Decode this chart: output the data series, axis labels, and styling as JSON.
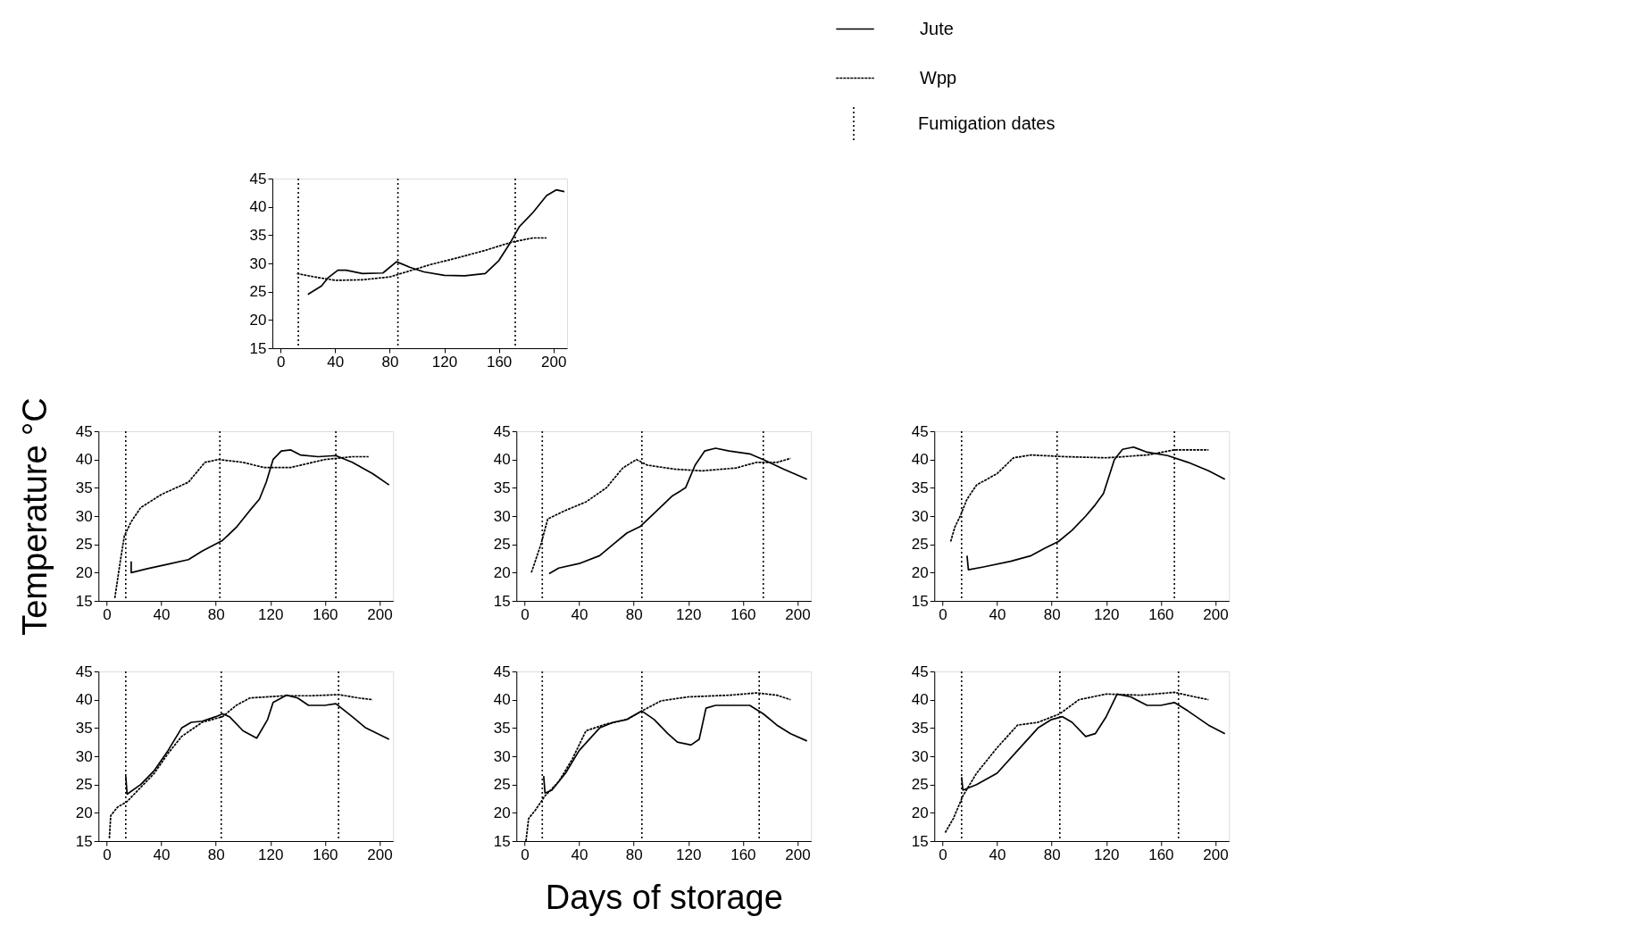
{
  "chart_data": [
    {
      "type": "line",
      "xlim": [
        -6,
        210
      ],
      "xticks": [
        0,
        40,
        80,
        120,
        160,
        200
      ],
      "ylim": [
        15,
        45
      ],
      "yticks": [
        15,
        20,
        25,
        30,
        35,
        40,
        45
      ],
      "grid": false,
      "legend": "top right",
      "series": [
        {
          "name": "Jute",
          "color": "#000000",
          "line_style": "solid",
          "x": [
            20,
            30,
            35,
            42,
            48,
            60,
            75,
            85,
            95,
            105,
            120,
            135,
            150,
            160,
            168,
            175,
            185,
            195,
            202,
            208
          ],
          "values": [
            24.5,
            26,
            27.5,
            28.8,
            28.8,
            28.2,
            28.3,
            30.3,
            29.3,
            28.5,
            27.9,
            27.8,
            28.2,
            30.5,
            33.5,
            36.5,
            39,
            42,
            43,
            42.7
          ]
        },
        {
          "name": "Wpp",
          "color": "#000000",
          "line_style": "dashed",
          "x": [
            12,
            25,
            40,
            60,
            80,
            95,
            110,
            130,
            150,
            170,
            185,
            195
          ],
          "values": [
            28.2,
            27.6,
            27,
            27.1,
            27.6,
            28.7,
            29.8,
            31,
            32.3,
            33.8,
            34.5,
            34.5
          ]
        }
      ],
      "annotations": [
        "Fumigation dates"
      ],
      "ref_lines": [
        {
          "axis": "x",
          "value": 13,
          "color": "#000000",
          "line_style": "dotted"
        },
        {
          "axis": "x",
          "value": 86,
          "color": "#000000",
          "line_style": "dotted"
        },
        {
          "axis": "x",
          "value": 172,
          "color": "#000000",
          "line_style": "dotted"
        }
      ]
    },
    {
      "type": "line",
      "ylabel": "Temperature °C",
      "xlim": [
        -6,
        210
      ],
      "xticks": [
        0,
        40,
        80,
        120,
        160,
        200
      ],
      "ylim": [
        15,
        45
      ],
      "yticks": [
        15,
        20,
        25,
        30,
        35,
        40,
        45
      ],
      "grid": false,
      "series": [
        {
          "color": "#000000",
          "line_style": "solid",
          "x": [
            18,
            18,
            30,
            45,
            60,
            70,
            85,
            95,
            105,
            112,
            117,
            122,
            128,
            135,
            142,
            155,
            168,
            180,
            195,
            207
          ],
          "values": [
            22,
            20,
            20.7,
            21.5,
            22.3,
            23.8,
            25.7,
            28,
            31,
            33,
            36,
            40,
            41.5,
            41.7,
            40.8,
            40.5,
            40.7,
            39.5,
            37.5,
            35.5
          ]
        },
        {
          "color": "#000000",
          "line_style": "dashed",
          "x": [
            6,
            10,
            13,
            18,
            25,
            40,
            60,
            72,
            82,
            100,
            115,
            135,
            160,
            180,
            192
          ],
          "values": [
            15.5,
            22,
            26.5,
            29,
            31.5,
            33.8,
            36,
            39.5,
            40,
            39.5,
            38.6,
            38.6,
            40,
            40.5,
            40.5
          ]
        }
      ],
      "ref_lines": [
        {
          "axis": "x",
          "value": 14,
          "color": "#000000",
          "line_style": "dotted"
        },
        {
          "axis": "x",
          "value": 83,
          "color": "#000000",
          "line_style": "dotted"
        },
        {
          "axis": "x",
          "value": 168,
          "color": "#000000",
          "line_style": "dotted"
        }
      ]
    },
    {
      "type": "line",
      "xlim": [
        -6,
        210
      ],
      "xticks": [
        0,
        40,
        80,
        120,
        160,
        200
      ],
      "ylim": [
        15,
        45
      ],
      "yticks": [
        15,
        20,
        25,
        30,
        35,
        40,
        45
      ],
      "grid": false,
      "series": [
        {
          "color": "#000000",
          "line_style": "solid",
          "x": [
            18,
            25,
            40,
            55,
            65,
            75,
            85,
            95,
            108,
            118,
            125,
            132,
            140,
            150,
            165,
            175,
            190,
            207
          ],
          "values": [
            19.8,
            20.8,
            21.6,
            23,
            25,
            27,
            28.2,
            30.5,
            33.5,
            35,
            39,
            41.5,
            42,
            41.5,
            41,
            40,
            38.3,
            36.5
          ]
        },
        {
          "color": "#000000",
          "line_style": "dashed",
          "x": [
            5,
            12,
            17,
            30,
            45,
            60,
            72,
            82,
            90,
            110,
            130,
            155,
            170,
            185,
            195
          ],
          "values": [
            20,
            25,
            29.5,
            31,
            32.5,
            35,
            38.5,
            40,
            39,
            38.3,
            38,
            38.5,
            39.5,
            39.5,
            40.2
          ]
        }
      ],
      "ref_lines": [
        {
          "axis": "x",
          "value": 13,
          "color": "#000000",
          "line_style": "dotted"
        },
        {
          "axis": "x",
          "value": 86,
          "color": "#000000",
          "line_style": "dotted"
        },
        {
          "axis": "x",
          "value": 175,
          "color": "#000000",
          "line_style": "dotted"
        }
      ]
    },
    {
      "type": "line",
      "xlim": [
        -6,
        210
      ],
      "xticks": [
        0,
        40,
        80,
        120,
        160,
        200
      ],
      "ylim": [
        15,
        45
      ],
      "yticks": [
        15,
        20,
        25,
        30,
        35,
        40,
        45
      ],
      "grid": false,
      "series": [
        {
          "color": "#000000",
          "line_style": "solid",
          "x": [
            18,
            19,
            30,
            50,
            65,
            75,
            85,
            95,
            105,
            112,
            118,
            122,
            126,
            132,
            140,
            150,
            165,
            180,
            195,
            207
          ],
          "values": [
            23,
            20.5,
            21,
            22,
            23,
            24.3,
            25.5,
            27.5,
            30,
            32,
            34,
            37,
            40,
            41.8,
            42.2,
            41.3,
            40.7,
            39.5,
            38,
            36.5
          ]
        },
        {
          "color": "#000000",
          "line_style": "dashed",
          "x": [
            6,
            9,
            13,
            18,
            25,
            40,
            52,
            65,
            90,
            120,
            150,
            170,
            195
          ],
          "values": [
            25.5,
            28,
            30,
            33,
            35.5,
            37.5,
            40.3,
            40.8,
            40.5,
            40.3,
            40.8,
            41.7,
            41.7
          ]
        }
      ],
      "ref_lines": [
        {
          "axis": "x",
          "value": 14,
          "color": "#000000",
          "line_style": "dotted"
        },
        {
          "axis": "x",
          "value": 84,
          "color": "#000000",
          "line_style": "dotted"
        },
        {
          "axis": "x",
          "value": 170,
          "color": "#000000",
          "line_style": "dotted"
        }
      ]
    },
    {
      "type": "line",
      "xlim": [
        -6,
        210
      ],
      "xticks": [
        0,
        40,
        80,
        120,
        160,
        200
      ],
      "ylim": [
        15,
        45
      ],
      "yticks": [
        15,
        20,
        25,
        30,
        35,
        40,
        45
      ],
      "grid": false,
      "series": [
        {
          "color": "#000000",
          "line_style": "solid",
          "x": [
            14,
            15,
            25,
            35,
            45,
            55,
            62,
            70,
            80,
            85,
            90,
            100,
            110,
            118,
            122,
            132,
            140,
            148,
            160,
            168,
            180,
            190,
            207
          ],
          "values": [
            26.5,
            23.3,
            25,
            27.5,
            31,
            35,
            36,
            36.2,
            37,
            37.5,
            37,
            34.5,
            33.2,
            36.5,
            39.5,
            40.8,
            40.3,
            39,
            39,
            39.3,
            37,
            35,
            33
          ]
        },
        {
          "color": "#000000",
          "line_style": "dashed",
          "x": [
            2,
            3,
            8,
            15,
            25,
            35,
            45,
            55,
            70,
            85,
            95,
            105,
            130,
            150,
            170,
            185,
            195
          ],
          "values": [
            15.5,
            19.5,
            21,
            22,
            24.5,
            27,
            30.5,
            33.5,
            36,
            37,
            39,
            40.3,
            40.7,
            40.7,
            40.9,
            40.3,
            40
          ]
        }
      ],
      "ref_lines": [
        {
          "axis": "x",
          "value": 14,
          "color": "#000000",
          "line_style": "dotted"
        },
        {
          "axis": "x",
          "value": 84,
          "color": "#000000",
          "line_style": "dotted"
        },
        {
          "axis": "x",
          "value": 170,
          "color": "#000000",
          "line_style": "dotted"
        }
      ]
    },
    {
      "type": "line",
      "xlabel": "Days of storage",
      "xlim": [
        -6,
        210
      ],
      "xticks": [
        0,
        40,
        80,
        120,
        160,
        200
      ],
      "ylim": [
        15,
        45
      ],
      "yticks": [
        15,
        20,
        25,
        30,
        35,
        40,
        45
      ],
      "grid": false,
      "series": [
        {
          "color": "#000000",
          "line_style": "solid",
          "x": [
            14,
            15,
            20,
            30,
            40,
            55,
            65,
            75,
            86,
            95,
            105,
            112,
            122,
            128,
            133,
            140,
            165,
            175,
            185,
            195,
            207
          ],
          "values": [
            26.5,
            23.5,
            24,
            27,
            31,
            35,
            36,
            36.5,
            38,
            36.5,
            34,
            32.5,
            32,
            33,
            38.5,
            39,
            39,
            37.5,
            35.5,
            34,
            32.7
          ]
        },
        {
          "color": "#000000",
          "line_style": "dashed",
          "x": [
            1,
            3,
            8,
            15,
            25,
            35,
            45,
            60,
            75,
            86,
            100,
            120,
            150,
            170,
            185,
            195
          ],
          "values": [
            15,
            19,
            20.5,
            23,
            25.5,
            29.5,
            34.5,
            35.7,
            36.5,
            38,
            39.8,
            40.5,
            40.8,
            41.2,
            40.8,
            40
          ]
        }
      ],
      "ref_lines": [
        {
          "axis": "x",
          "value": 13,
          "color": "#000000",
          "line_style": "dotted"
        },
        {
          "axis": "x",
          "value": 86,
          "color": "#000000",
          "line_style": "dotted"
        },
        {
          "axis": "x",
          "value": 172,
          "color": "#000000",
          "line_style": "dotted"
        }
      ]
    },
    {
      "type": "line",
      "xlim": [
        -6,
        210
      ],
      "xticks": [
        0,
        40,
        80,
        120,
        160,
        200
      ],
      "ylim": [
        15,
        45
      ],
      "yticks": [
        15,
        20,
        25,
        30,
        35,
        40,
        45
      ],
      "grid": false,
      "series": [
        {
          "color": "#000000",
          "line_style": "solid",
          "x": [
            14,
            15,
            25,
            40,
            55,
            70,
            80,
            88,
            95,
            105,
            112,
            120,
            128,
            138,
            150,
            160,
            170,
            180,
            195,
            207
          ],
          "values": [
            26.3,
            24,
            25,
            27,
            31,
            35,
            36.5,
            37,
            36,
            33.5,
            34,
            37,
            41,
            40.5,
            39,
            39,
            39.5,
            38,
            35.5,
            34
          ]
        },
        {
          "color": "#000000",
          "line_style": "dashed",
          "x": [
            2,
            8,
            15,
            25,
            40,
            55,
            70,
            86,
            100,
            120,
            145,
            170,
            185,
            195
          ],
          "values": [
            16.5,
            19,
            23,
            27,
            31.5,
            35.5,
            36,
            37.5,
            40,
            41,
            40.8,
            41.3,
            40.5,
            40
          ]
        }
      ],
      "ref_lines": [
        {
          "axis": "x",
          "value": 14,
          "color": "#000000",
          "line_style": "dotted"
        },
        {
          "axis": "x",
          "value": 86,
          "color": "#000000",
          "line_style": "dotted"
        },
        {
          "axis": "x",
          "value": 173,
          "color": "#000000",
          "line_style": "dotted"
        }
      ]
    }
  ]
}
